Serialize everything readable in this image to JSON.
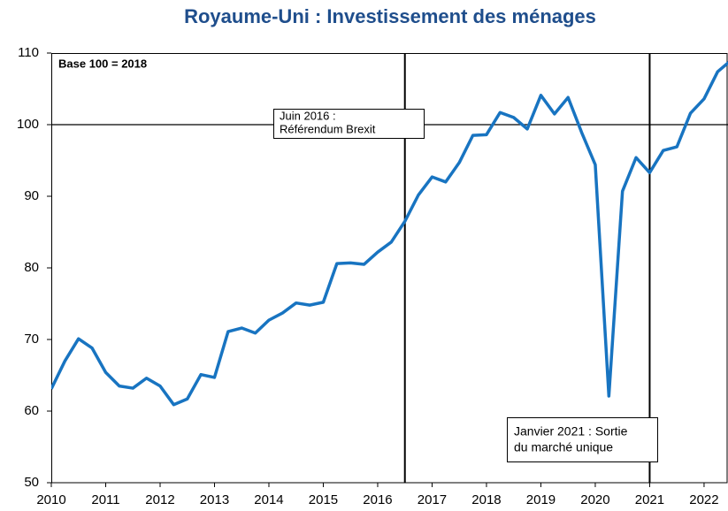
{
  "chart_data": {
    "type": "line",
    "title": "Royaume-Uni : Investissement des ménages",
    "subtitle": "Base 100 = 2018",
    "x": [
      2010,
      2010.25,
      2010.5,
      2010.75,
      2011,
      2011.25,
      2011.5,
      2011.75,
      2012,
      2012.25,
      2012.5,
      2012.75,
      2013,
      2013.25,
      2013.5,
      2013.75,
      2014,
      2014.25,
      2014.5,
      2014.75,
      2015,
      2015.25,
      2015.5,
      2015.75,
      2016,
      2016.25,
      2016.5,
      2016.75,
      2017,
      2017.25,
      2017.5,
      2017.75,
      2018,
      2018.25,
      2018.5,
      2018.75,
      2019,
      2019.25,
      2019.5,
      2019.75,
      2020,
      2020.25,
      2020.5,
      2020.75,
      2021,
      2021.25,
      2021.5,
      2021.75,
      2022,
      2022.25,
      2022.5
    ],
    "series": [
      {
        "name": "Investissement des ménages",
        "color": "#1874c1",
        "values": [
          63.1,
          67.0,
          70.1,
          68.8,
          65.4,
          63.5,
          63.2,
          64.6,
          63.5,
          60.9,
          61.7,
          65.1,
          64.7,
          71.1,
          71.6,
          70.9,
          72.7,
          73.7,
          75.1,
          74.8,
          75.2,
          80.6,
          80.7,
          80.5,
          82.2,
          83.6,
          86.5,
          90.2,
          92.7,
          92.0,
          94.7,
          98.5,
          98.6,
          101.7,
          101.0,
          99.4,
          104.1,
          101.5,
          103.8,
          98.9,
          94.4,
          62.1,
          90.7,
          95.4,
          93.3,
          96.4,
          96.9,
          101.6,
          103.6,
          107.4,
          109.0
        ]
      }
    ],
    "xlim": [
      2010,
      2022.44
    ],
    "xticks": [
      2010,
      2011,
      2012,
      2013,
      2014,
      2015,
      2016,
      2017,
      2018,
      2019,
      2020,
      2021,
      2022
    ],
    "ylim": [
      50,
      110
    ],
    "yticks": [
      50,
      60,
      70,
      80,
      90,
      100,
      110
    ],
    "reference_x": [
      2016.5,
      2021
    ],
    "reference_y": [
      100
    ],
    "annotations": [
      {
        "lines": [
          "Juin 2016 :",
          "Référendum Brexit"
        ]
      },
      {
        "lines": [
          "Janvier 2021 : Sortie",
          "du marché unique"
        ]
      }
    ]
  }
}
